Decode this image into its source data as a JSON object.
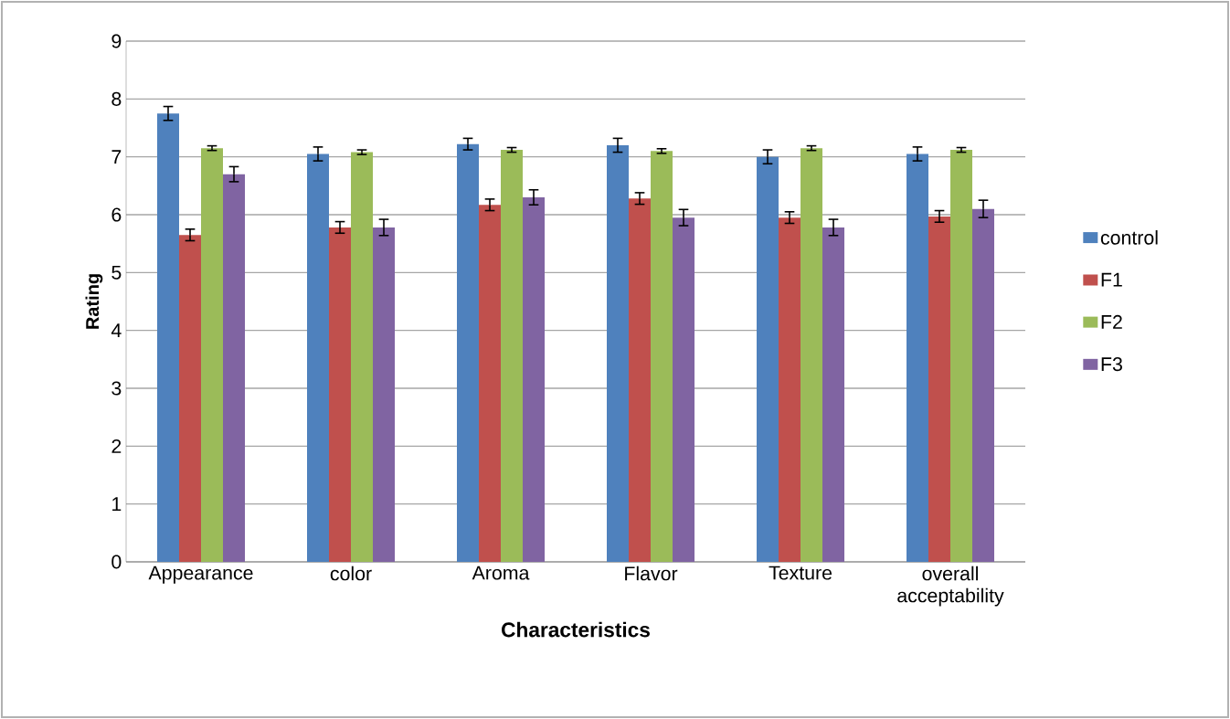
{
  "chart_data": {
    "type": "bar",
    "xlabel": "Characteristics",
    "ylabel": "Rating",
    "categories": [
      "Appearance",
      "color",
      "Aroma",
      "Flavor",
      "Texture",
      "overall acceptability"
    ],
    "series": [
      {
        "name": "control",
        "color": "#4f81bd",
        "values": [
          7.75,
          7.05,
          7.22,
          7.2,
          7.0,
          7.05
        ],
        "errors": [
          0.12,
          0.12,
          0.1,
          0.12,
          0.12,
          0.12
        ]
      },
      {
        "name": "F1",
        "color": "#c0504d",
        "values": [
          5.65,
          5.78,
          6.17,
          6.28,
          5.95,
          5.97
        ],
        "errors": [
          0.1,
          0.1,
          0.1,
          0.1,
          0.1,
          0.1
        ]
      },
      {
        "name": "F2",
        "color": "#9bbb59",
        "values": [
          7.15,
          7.08,
          7.12,
          7.1,
          7.15,
          7.12
        ],
        "errors": [
          0.04,
          0.04,
          0.04,
          0.04,
          0.04,
          0.04
        ]
      },
      {
        "name": "F3",
        "color": "#8064a2",
        "values": [
          6.7,
          5.78,
          6.3,
          5.95,
          5.78,
          6.1
        ],
        "errors": [
          0.13,
          0.14,
          0.13,
          0.14,
          0.14,
          0.15
        ]
      }
    ],
    "ylim": [
      0,
      9
    ],
    "yticks": [
      0,
      1,
      2,
      3,
      4,
      5,
      6,
      7,
      8,
      9
    ],
    "grid": "y",
    "legend": "right"
  }
}
